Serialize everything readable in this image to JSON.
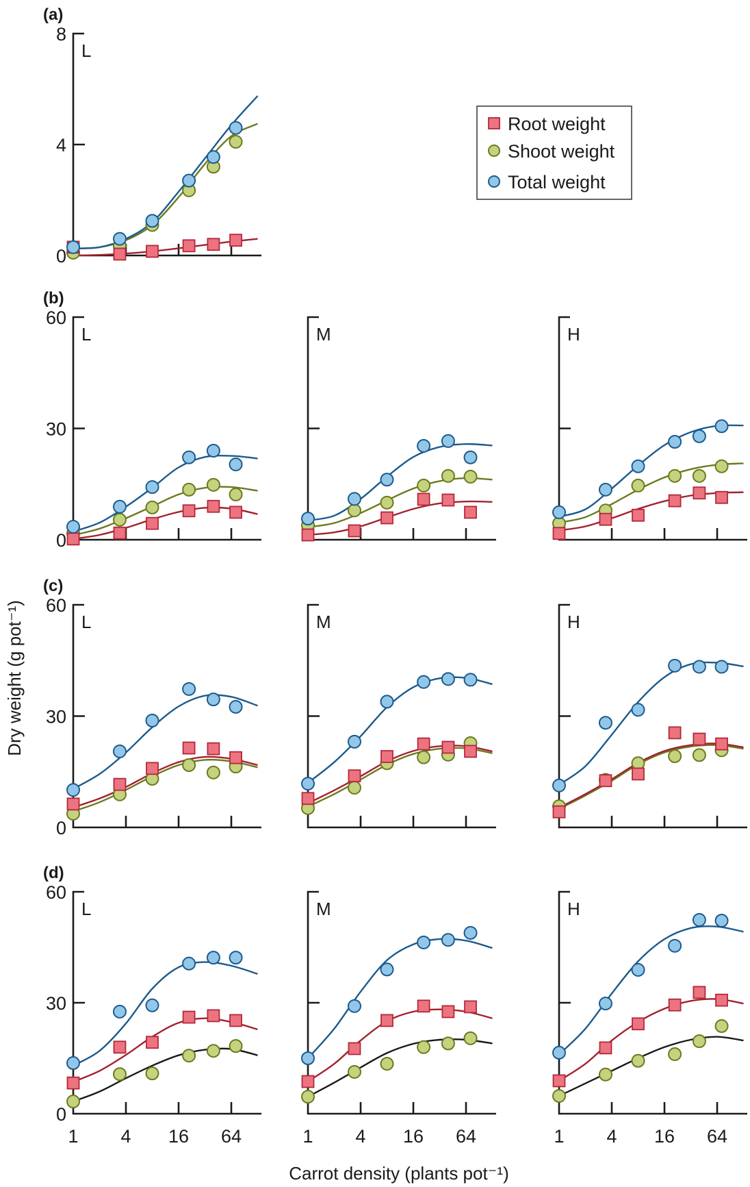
{
  "chart_data": {
    "type": "scatter",
    "title": "",
    "xlabel": "Carrot density (plants pot⁻¹)",
    "ylabel": "Dry weight (g pot⁻¹)",
    "xscale": "log2",
    "xlim": [
      1,
      128
    ],
    "x_ticks": [
      1,
      4,
      16,
      64
    ],
    "x_tick_labels": [
      "1",
      "4",
      "16",
      "64"
    ],
    "densities": [
      1,
      3.4,
      8,
      21,
      40,
      72
    ],
    "curve_densities": [
      1,
      2,
      4,
      8,
      16,
      32,
      64,
      128
    ],
    "legend": {
      "placement": "top-right",
      "entries": [
        {
          "key": "root",
          "label": "Root weight",
          "marker": "square"
        },
        {
          "key": "shoot",
          "label": "Shoot weight",
          "marker": "circle"
        },
        {
          "key": "total",
          "label": "Total weight",
          "marker": "circle"
        }
      ]
    },
    "colors": {
      "root_fill": "#ec7480",
      "root_stroke": "#b3283a",
      "root_line": "#a3212f",
      "shoot_fill": "#c5d27e",
      "shoot_stroke": "#6b7a1f",
      "shoot_line": "#6b7a1f",
      "total_fill": "#93c7ea",
      "total_stroke": "#1c5b8c",
      "total_line": "#1c5b8c",
      "black_line": "#1a1a1a"
    },
    "rows": [
      {
        "letter": "(a)",
        "ylim": [
          0,
          8
        ],
        "y_ticks": [
          0,
          4,
          8
        ],
        "y_tick_labels": [
          "0",
          "4",
          "8"
        ],
        "panels": [
          {
            "label": "L",
            "shoot_line_color": "shoot",
            "series": {
              "root": [
                0.3,
                0.05,
                0.15,
                0.35,
                0.4,
                0.55
              ],
              "shoot": [
                0.1,
                0.35,
                1.1,
                2.35,
                3.2,
                4.1
              ],
              "total": [
                0.3,
                0.6,
                1.25,
                2.7,
                3.55,
                4.6
              ]
            },
            "curves": {
              "root": [
                0.0,
                0.02,
                0.07,
                0.15,
                0.26,
                0.38,
                0.5,
                0.6
              ],
              "shoot": [
                0.25,
                0.3,
                0.55,
                1.1,
                2.1,
                3.3,
                4.3,
                4.75
              ],
              "total": [
                0.25,
                0.3,
                0.6,
                1.2,
                2.3,
                3.5,
                4.7,
                5.75
              ]
            }
          }
        ]
      },
      {
        "letter": "(b)",
        "ylim": [
          0,
          60
        ],
        "y_ticks": [
          0,
          30,
          60
        ],
        "y_tick_labels": [
          "0",
          "30",
          "60"
        ],
        "panels": [
          {
            "label": "L",
            "shoot_line_color": "shoot",
            "series": {
              "root": [
                0.2,
                1.8,
                4.4,
                7.8,
                9.0,
                7.4
              ],
              "shoot": [
                1.7,
                5.4,
                8.7,
                13.5,
                14.8,
                12.2
              ],
              "total": [
                3.5,
                8.9,
                14.2,
                22.2,
                24.0,
                20.3
              ]
            },
            "curves": {
              "root": [
                0.2,
                1.3,
                3.2,
                5.5,
                7.5,
                8.6,
                8.4,
                6.9
              ],
              "shoot": [
                1.2,
                3.0,
                5.8,
                9.0,
                12.2,
                14.0,
                14.2,
                13.2
              ],
              "total": [
                2.2,
                4.6,
                8.9,
                14.0,
                19.5,
                22.3,
                22.6,
                21.9
              ]
            }
          },
          {
            "label": "M",
            "shoot_line_color": "shoot",
            "series": {
              "root": [
                1.3,
                2.4,
                5.9,
                10.9,
                10.7,
                7.4
              ],
              "shoot": [
                3.9,
                7.9,
                10.0,
                14.6,
                17.2,
                17.0
              ],
              "total": [
                5.7,
                11.0,
                16.2,
                25.3,
                26.6,
                22.2
              ]
            },
            "curves": {
              "root": [
                1.3,
                2.0,
                3.6,
                6.0,
                8.3,
                9.8,
                10.3,
                10.2
              ],
              "shoot": [
                3.4,
                4.5,
                7.2,
                10.6,
                13.8,
                15.8,
                16.6,
                16.2
              ],
              "total": [
                5.2,
                6.5,
                11.0,
                17.0,
                22.3,
                25.0,
                25.8,
                25.4
              ]
            }
          },
          {
            "label": "H",
            "shoot_line_color": "shoot",
            "series": {
              "root": [
                1.7,
                5.5,
                6.6,
                10.5,
                12.6,
                11.4
              ],
              "shoot": [
                4.4,
                7.9,
                14.6,
                17.2,
                17.2,
                19.8
              ],
              "total": [
                7.4,
                13.5,
                19.8,
                26.4,
                27.9,
                30.6
              ]
            },
            "curves": {
              "root": [
                2.5,
                3.6,
                5.8,
                8.3,
                10.4,
                11.9,
                12.6,
                12.8
              ],
              "shoot": [
                4.6,
                6.1,
                9.6,
                13.5,
                16.8,
                19.0,
                20.2,
                20.6
              ],
              "total": [
                6.2,
                8.2,
                13.8,
                20.0,
                25.5,
                29.0,
                30.7,
                30.8
              ]
            }
          }
        ]
      },
      {
        "letter": "(c)",
        "ylim": [
          0,
          60
        ],
        "y_ticks": [
          0,
          30,
          60
        ],
        "y_tick_labels": [
          "0",
          "30",
          "60"
        ],
        "panels": [
          {
            "label": "L",
            "shoot_line_color": "shoot",
            "series": {
              "root": [
                6.3,
                11.6,
                15.9,
                21.4,
                21.2,
                18.8
              ],
              "shoot": [
                3.7,
                8.9,
                13.1,
                16.8,
                14.8,
                16.4
              ],
              "total": [
                10.1,
                20.5,
                28.8,
                37.3,
                34.5,
                32.5
              ]
            },
            "curves": {
              "root": [
                5.4,
                7.8,
                10.9,
                14.6,
                17.6,
                19.0,
                18.5,
                16.8
              ],
              "shoot": [
                4.3,
                6.8,
                10.1,
                13.8,
                16.8,
                18.2,
                17.8,
                16.2
              ],
              "total": [
                10.4,
                14.4,
                20.2,
                27.0,
                32.6,
                35.5,
                35.2,
                32.8
              ]
            }
          },
          {
            "label": "M",
            "shoot_line_color": "shoot",
            "series": {
              "root": [
                7.8,
                13.9,
                19.1,
                22.5,
                21.6,
                20.5
              ],
              "shoot": [
                5.2,
                10.7,
                17.3,
                18.9,
                19.6,
                22.7
              ],
              "total": [
                11.8,
                23.1,
                33.9,
                39.2,
                40.0,
                39.8
              ]
            },
            "curves": {
              "root": [
                6.5,
                10.0,
                13.8,
                17.8,
                20.6,
                21.9,
                21.9,
                20.5
              ],
              "shoot": [
                5.6,
                9.0,
                12.9,
                16.9,
                19.8,
                21.2,
                21.3,
                20.0
              ],
              "total": [
                12.0,
                17.6,
                24.6,
                32.4,
                37.8,
                40.2,
                40.3,
                38.6
              ]
            }
          },
          {
            "label": "H",
            "shoot_line_color": "shoot",
            "series": {
              "root": [
                4.2,
                12.6,
                14.4,
                25.5,
                23.8,
                22.5
              ],
              "shoot": [
                5.7,
                12.8,
                17.3,
                19.2,
                19.5,
                20.8
              ],
              "total": [
                11.3,
                28.2,
                31.7,
                43.6,
                43.3,
                43.3
              ]
            },
            "curves": {
              "root": [
                5.3,
                9.0,
                13.0,
                17.4,
                20.6,
                22.2,
                22.6,
                21.6
              ],
              "shoot": [
                5.0,
                8.6,
                12.6,
                17.0,
                20.2,
                21.8,
                22.2,
                21.2
              ],
              "total": [
                11.5,
                16.5,
                25.0,
                33.8,
                40.5,
                44.0,
                44.4,
                43.4
              ]
            }
          }
        ]
      },
      {
        "letter": "(d)",
        "ylim": [
          0,
          60
        ],
        "y_ticks": [
          0,
          30,
          60
        ],
        "y_tick_labels": [
          "0",
          "30",
          "60"
        ],
        "panels": [
          {
            "label": "L",
            "shoot_line_color": "black",
            "series": {
              "root": [
                8.3,
                18.0,
                19.3,
                26.1,
                26.5,
                25.2
              ],
              "shoot": [
                3.3,
                10.7,
                10.9,
                15.7,
                17.0,
                18.3
              ],
              "total": [
                13.7,
                27.6,
                29.3,
                40.6,
                42.2,
                42.2
              ]
            },
            "curves": {
              "root": [
                8.6,
                11.6,
                15.9,
                20.8,
                24.6,
                25.8,
                24.8,
                22.8
              ],
              "shoot": [
                3.3,
                6.0,
                9.6,
                13.0,
                15.8,
                17.3,
                17.5,
                15.8
              ],
              "total": [
                13.0,
                17.0,
                24.4,
                33.8,
                39.6,
                41.0,
                40.0,
                37.8
              ]
            }
          },
          {
            "label": "M",
            "shoot_line_color": "black",
            "series": {
              "root": [
                8.7,
                17.6,
                25.2,
                29.1,
                27.6,
                28.9
              ],
              "shoot": [
                4.6,
                11.3,
                13.5,
                18.0,
                19.0,
                20.4
              ],
              "total": [
                15.0,
                29.1,
                39.0,
                46.3,
                47.0,
                48.9
              ]
            },
            "curves": {
              "root": [
                8.7,
                13.5,
                19.8,
                25.0,
                27.6,
                28.2,
                27.6,
                25.8
              ],
              "shoot": [
                4.6,
                8.4,
                12.5,
                16.4,
                18.9,
                20.0,
                20.0,
                19.0
              ],
              "total": [
                15.0,
                23.0,
                33.0,
                41.5,
                45.8,
                47.2,
                46.8,
                44.8
              ]
            }
          },
          {
            "label": "H",
            "shoot_line_color": "black",
            "series": {
              "root": [
                8.9,
                17.8,
                24.3,
                29.4,
                32.8,
                30.7
              ],
              "shoot": [
                4.8,
                10.6,
                14.3,
                16.1,
                19.6,
                23.7
              ],
              "total": [
                16.5,
                29.8,
                38.9,
                45.4,
                52.4,
                52.2
              ]
            },
            "curves": {
              "root": [
                8.9,
                13.5,
                19.8,
                24.8,
                28.4,
                30.5,
                31.0,
                29.8
              ],
              "shoot": [
                4.8,
                8.2,
                11.6,
                15.0,
                18.0,
                20.0,
                20.8,
                19.8
              ],
              "total": [
                16.0,
                23.0,
                32.5,
                41.2,
                47.2,
                50.2,
                50.6,
                49.2
              ]
            }
          }
        ]
      }
    ]
  }
}
